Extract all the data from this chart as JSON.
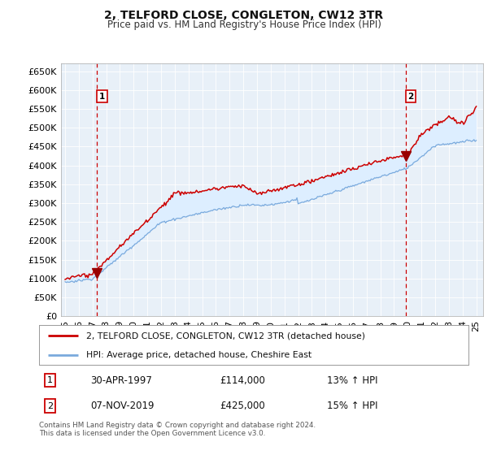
{
  "title": "2, TELFORD CLOSE, CONGLETON, CW12 3TR",
  "subtitle": "Price paid vs. HM Land Registry's House Price Index (HPI)",
  "ytick_values": [
    0,
    50000,
    100000,
    150000,
    200000,
    250000,
    300000,
    350000,
    400000,
    450000,
    500000,
    550000,
    600000,
    650000
  ],
  "ylim": [
    0,
    670000
  ],
  "xlim_start": 1994.7,
  "xlim_end": 2025.5,
  "transaction1_x": 1997.33,
  "transaction1_y": 114000,
  "transaction2_x": 2019.85,
  "transaction2_y": 425000,
  "transaction1_label": "30-APR-1997",
  "transaction1_price": "£114,000",
  "transaction1_hpi": "13% ↑ HPI",
  "transaction2_label": "07-NOV-2019",
  "transaction2_price": "£425,000",
  "transaction2_hpi": "15% ↑ HPI",
  "legend_line1": "2, TELFORD CLOSE, CONGLETON, CW12 3TR (detached house)",
  "legend_line2": "HPI: Average price, detached house, Cheshire East",
  "footer": "Contains HM Land Registry data © Crown copyright and database right 2024.\nThis data is licensed under the Open Government Licence v3.0.",
  "line_color_red": "#cc0000",
  "line_color_blue": "#7aaadd",
  "fill_color_blue": "#ddeeff",
  "grid_color": "#cccccc",
  "background_color": "#ffffff",
  "annotation_box_color": "#cc0000",
  "xtick_years": [
    1995,
    1996,
    1997,
    1998,
    1999,
    2000,
    2001,
    2002,
    2003,
    2004,
    2005,
    2006,
    2007,
    2008,
    2009,
    2010,
    2011,
    2012,
    2013,
    2014,
    2015,
    2016,
    2017,
    2018,
    2019,
    2020,
    2021,
    2022,
    2023,
    2024,
    2025
  ]
}
